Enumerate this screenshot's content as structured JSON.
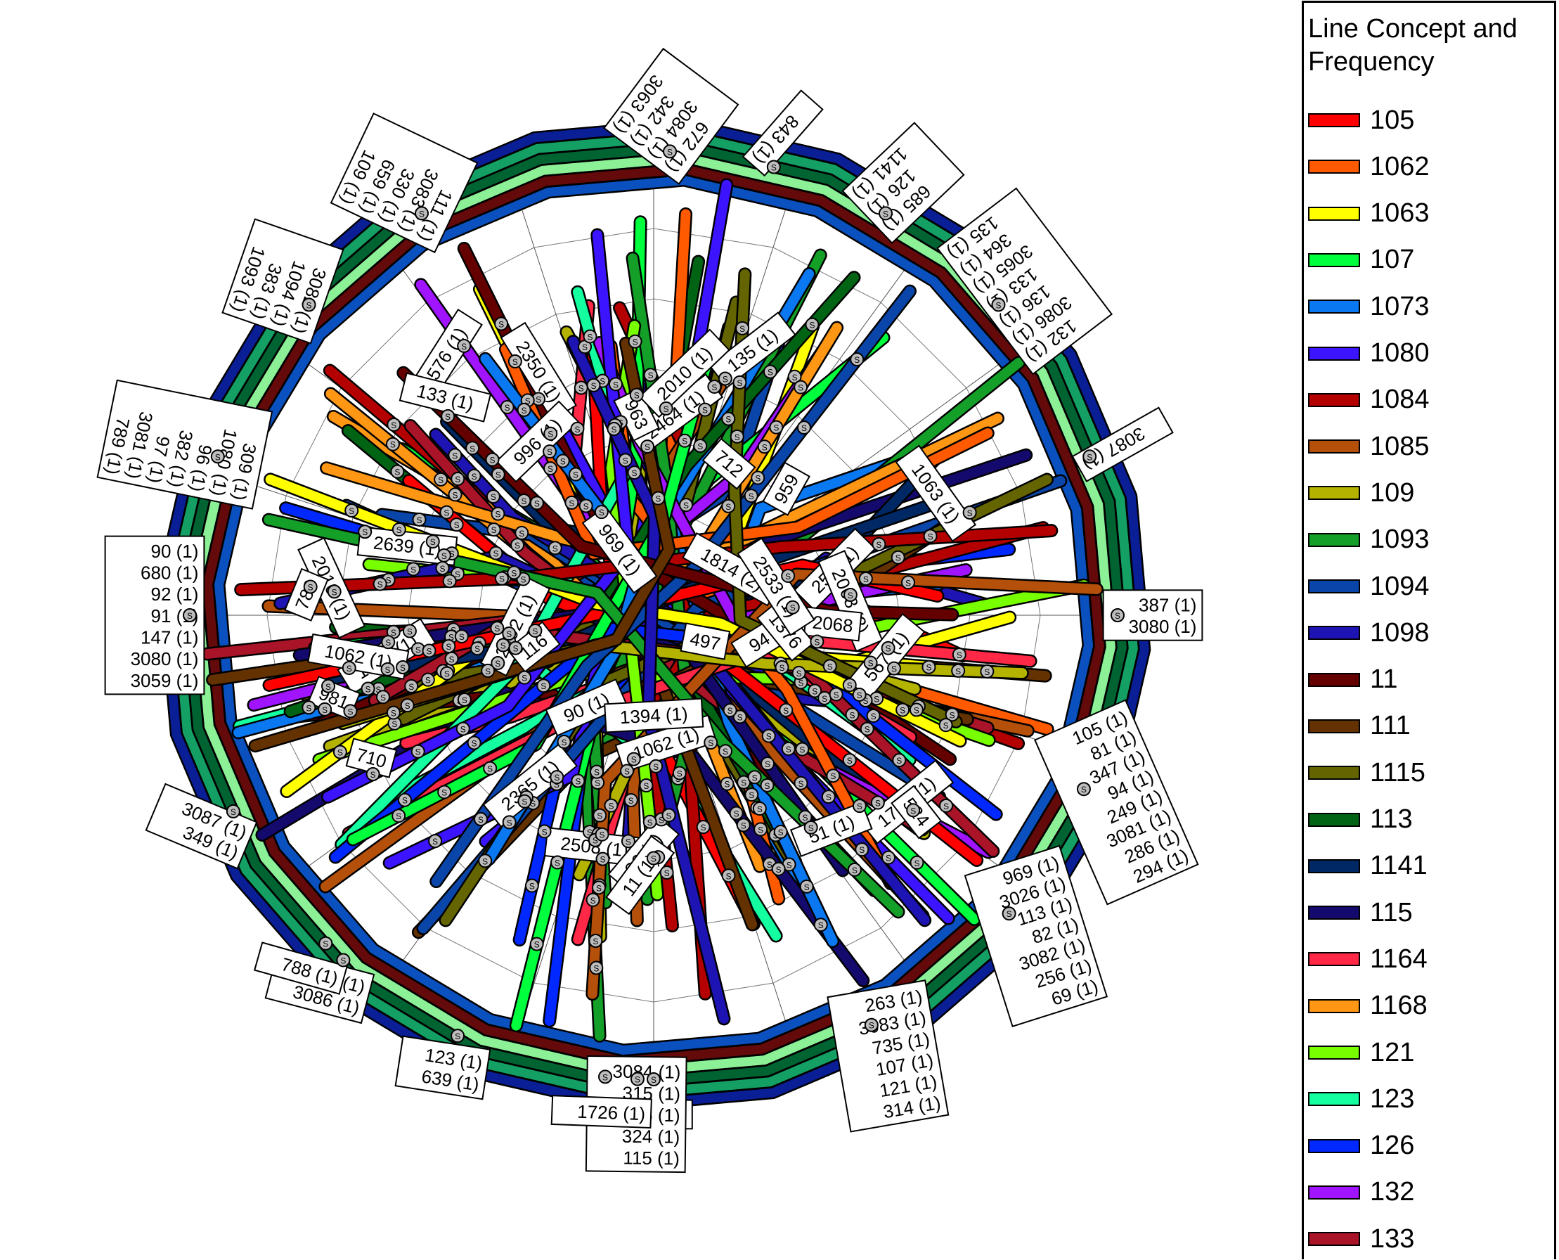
{
  "legend": {
    "title_line1": "Line Concept and",
    "title_line2": "Frequency",
    "items": [
      {
        "label": "105",
        "color": "#ff0000"
      },
      {
        "label": "1062",
        "color": "#ff5a00"
      },
      {
        "label": "1063",
        "color": "#ffff00"
      },
      {
        "label": "107",
        "color": "#00ff3c"
      },
      {
        "label": "1073",
        "color": "#0a78f0"
      },
      {
        "label": "1080",
        "color": "#3c14ff"
      },
      {
        "label": "1084",
        "color": "#b40000"
      },
      {
        "label": "1085",
        "color": "#b4500a"
      },
      {
        "label": "109",
        "color": "#b4b400"
      },
      {
        "label": "1093",
        "color": "#14a028"
      },
      {
        "label": "1094",
        "color": "#0a46aa"
      },
      {
        "label": "1098",
        "color": "#1e14b4"
      },
      {
        "label": "11",
        "color": "#640000"
      },
      {
        "label": "111",
        "color": "#643200"
      },
      {
        "label": "1115",
        "color": "#646400"
      },
      {
        "label": "113",
        "color": "#006414"
      },
      {
        "label": "1141",
        "color": "#002864"
      },
      {
        "label": "115",
        "color": "#140a6e"
      },
      {
        "label": "1164",
        "color": "#ff2846"
      },
      {
        "label": "1168",
        "color": "#ff9614"
      },
      {
        "label": "121",
        "color": "#78ff00"
      },
      {
        "label": "123",
        "color": "#14ffa0"
      },
      {
        "label": "126",
        "color": "#0028ff"
      },
      {
        "label": "132",
        "color": "#a014ff"
      },
      {
        "label": "133",
        "color": "#aa1428"
      }
    ]
  },
  "outer_colors": [
    "#0a1e96",
    "#14a064",
    "#006432",
    "#8cf096",
    "#640a0a",
    "#0a50be"
  ],
  "stations": [
    {
      "angle": 272,
      "lines": [
        "672 (1)",
        "3084 (1)",
        "342 (1)",
        "3063 (1)"
      ]
    },
    {
      "angle": 285,
      "lines": [
        "843 (1)"
      ]
    },
    {
      "angle": 300,
      "lines": [
        "685 (1)",
        "126 (1)",
        "1141 (1)"
      ]
    },
    {
      "angle": 318,
      "lines": [
        "132 (1)",
        "3086 (1)",
        "136 (1)",
        "133 (1)",
        "3065 (1)",
        "364 (1)",
        "135 (1)"
      ]
    },
    {
      "angle": 340,
      "lines": [
        "3087 (1)"
      ]
    },
    {
      "angle": 0,
      "lines": [
        "387 (1)",
        "3080 (1)"
      ]
    },
    {
      "angle": 22,
      "lines": [
        "105 (1)",
        "81 (1)",
        "347 (1)",
        "94 (1)",
        "249 (1)",
        "3081 (1)",
        "286 (1)",
        "294 (1)"
      ]
    },
    {
      "angle": 40,
      "lines": [
        "969 (1)",
        "3026 (1)",
        "113 (1)",
        "82 (1)",
        "3082 (1)",
        "256 (1)",
        "69 (1)"
      ]
    },
    {
      "angle": 62,
      "lines": [
        "263 (1)",
        "3083 (1)",
        "735 (1)",
        "107 (1)",
        "121 (1)",
        "314 (1)"
      ]
    },
    {
      "angle": 90,
      "lines": [
        "31 (1)"
      ]
    },
    {
      "angle": 92,
      "lines": [
        "3084 (1)",
        "315 (1)",
        "76 (1)",
        "324 (1)",
        "115 (1)"
      ]
    },
    {
      "angle": 96,
      "lines": [
        "1726 (1)"
      ]
    },
    {
      "angle": 115,
      "lines": [
        "123 (1)",
        "639 (1)"
      ]
    },
    {
      "angle": 132,
      "lines": [
        "336 (1)",
        "3086 (1)"
      ]
    },
    {
      "angle": 135,
      "lines": [
        "788 (1)"
      ]
    },
    {
      "angle": 155,
      "lines": [
        "3087 (1)",
        "349 (1)"
      ]
    },
    {
      "angle": 180,
      "lines": [
        "90 (1)",
        "680 (1)",
        "92 (1)",
        "91 (1)",
        "147 (1)",
        "3080 (1)",
        "3059 (1)"
      ]
    },
    {
      "angle": 200,
      "lines": [
        "309 (1)",
        "1080 (1)",
        "96 (1)",
        "382 (1)",
        "97 (1)",
        "3081 (1)",
        "789 (1)"
      ]
    },
    {
      "angle": 222,
      "lines": [
        "3082 (1)",
        "1094 (1)",
        "383 (1)",
        "1093 (1)"
      ]
    },
    {
      "angle": 240,
      "lines": [
        "111 (1)",
        "3083 (1)",
        "330 (1)",
        "659 (1)",
        "109 (1)"
      ]
    }
  ],
  "inner_labels": [
    "2508 (1)",
    "2492 (1)",
    "2464 (1)",
    "2639 (1)",
    "1062 (1)",
    "36 (1)",
    "94 (1)",
    "259 (1)",
    "1595 (1)",
    "2068 (2)",
    "1814 (2)",
    "969 (1)",
    "2350 (1)",
    "2365 (1)",
    "1726 (1)",
    "90 (1)",
    "2010 (1)",
    "2068",
    "1394 (1)",
    "996 (1)",
    "576 (1)",
    "133 (1)",
    "567 (1)",
    "11 (1)",
    "963",
    "959",
    "524",
    "712",
    "116",
    "710",
    "51 (1)",
    "1376",
    "1062 (1)",
    "1063 (1)",
    "135 (1)",
    "789",
    "981",
    "497",
    "2010 (1)",
    "2533 (1)"
  ]
}
